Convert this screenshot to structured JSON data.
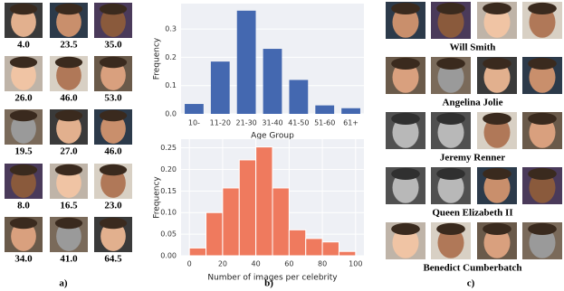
{
  "chart_data": [
    {
      "type": "bar",
      "ylabel": "Frequency",
      "xlabel": "Age Group",
      "categories": [
        "10-",
        "11-20",
        "21-30",
        "31-40",
        "41-50",
        "51-60",
        "61+"
      ],
      "values": [
        0.035,
        0.185,
        0.365,
        0.23,
        0.12,
        0.03,
        0.02
      ],
      "color": "#4468b0",
      "ylim": [
        0,
        0.39
      ],
      "yticks": [
        {
          "value": 0,
          "label": "0.0"
        },
        {
          "value": 0.1,
          "label": "0.1"
        },
        {
          "value": 0.2,
          "label": "0.2"
        },
        {
          "value": 0.3,
          "label": "0.3"
        }
      ],
      "grid": true
    },
    {
      "type": "histogram",
      "ylabel": "Frequency",
      "xlabel": "Number of images per celebrity",
      "bins": [
        0,
        10,
        20,
        30,
        40,
        50,
        60,
        70,
        80,
        90,
        100
      ],
      "values": [
        0.018,
        0.1,
        0.157,
        0.222,
        0.252,
        0.157,
        0.06,
        0.04,
        0.032,
        0.01
      ],
      "color": "#ef7a5e",
      "xlim": [
        -5,
        105
      ],
      "xticks": [
        0,
        20,
        40,
        60,
        80,
        100
      ],
      "ylim": [
        0,
        0.27
      ],
      "yticks": [
        {
          "value": 0,
          "label": "0.00"
        },
        {
          "value": 0.05,
          "label": "0.05"
        },
        {
          "value": 0.1,
          "label": "0.10"
        },
        {
          "value": 0.15,
          "label": "0.15"
        },
        {
          "value": 0.2,
          "label": "0.20"
        },
        {
          "value": 0.25,
          "label": "0.25"
        }
      ],
      "grid": true
    }
  ],
  "panel_a": {
    "ages": [
      [
        "4.0",
        "23.5",
        "35.0"
      ],
      [
        "26.0",
        "46.0",
        "53.0"
      ],
      [
        "19.5",
        "27.0",
        "46.0"
      ],
      [
        "8.0",
        "16.5",
        "23.0"
      ],
      [
        "34.0",
        "41.0",
        "64.5"
      ]
    ],
    "label": "a)"
  },
  "panel_b": {
    "label": "b)"
  },
  "panel_c": {
    "names": [
      "Will Smith",
      "Angelina Jolie",
      "Jeremy Renner",
      "Queen Elizabeth II",
      "Benedict Cumberbatch"
    ],
    "label": "c)"
  }
}
